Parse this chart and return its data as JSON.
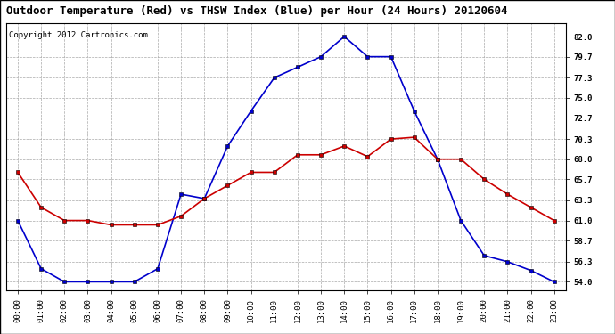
{
  "title": "Outdoor Temperature (Red) vs THSW Index (Blue) per Hour (24 Hours) 20120604",
  "copyright": "Copyright 2012 Cartronics.com",
  "hours": [
    "00:00",
    "01:00",
    "02:00",
    "03:00",
    "04:00",
    "05:00",
    "06:00",
    "07:00",
    "08:00",
    "09:00",
    "10:00",
    "11:00",
    "12:00",
    "13:00",
    "14:00",
    "15:00",
    "16:00",
    "17:00",
    "18:00",
    "19:00",
    "20:00",
    "21:00",
    "22:00",
    "23:00"
  ],
  "red_temp": [
    66.5,
    62.5,
    61.0,
    61.0,
    60.5,
    60.5,
    60.5,
    61.5,
    63.5,
    65.0,
    66.5,
    66.5,
    68.5,
    68.5,
    69.5,
    68.3,
    70.3,
    70.5,
    68.0,
    68.0,
    65.7,
    64.0,
    62.5,
    61.0
  ],
  "blue_thsw": [
    61.0,
    55.5,
    54.0,
    54.0,
    54.0,
    54.0,
    55.5,
    64.0,
    63.5,
    69.5,
    73.5,
    77.3,
    78.5,
    79.7,
    82.0,
    79.7,
    79.7,
    73.5,
    68.0,
    61.0,
    57.0,
    56.3,
    55.3,
    54.0
  ],
  "yticks": [
    54.0,
    56.3,
    58.7,
    61.0,
    63.3,
    65.7,
    68.0,
    70.3,
    72.7,
    75.0,
    77.3,
    79.7,
    82.0
  ],
  "ylim": [
    53.0,
    83.5
  ],
  "bg_color": "#ffffff",
  "grid_color": "#aaaaaa",
  "plot_bg": "#ffffff",
  "red_color": "#cc0000",
  "blue_color": "#0000cc",
  "marker": "s",
  "markersize": 3,
  "linewidth": 1.2,
  "title_fontsize": 9,
  "copyright_fontsize": 6.5,
  "tick_fontsize": 6.5,
  "border_color": "#000000"
}
